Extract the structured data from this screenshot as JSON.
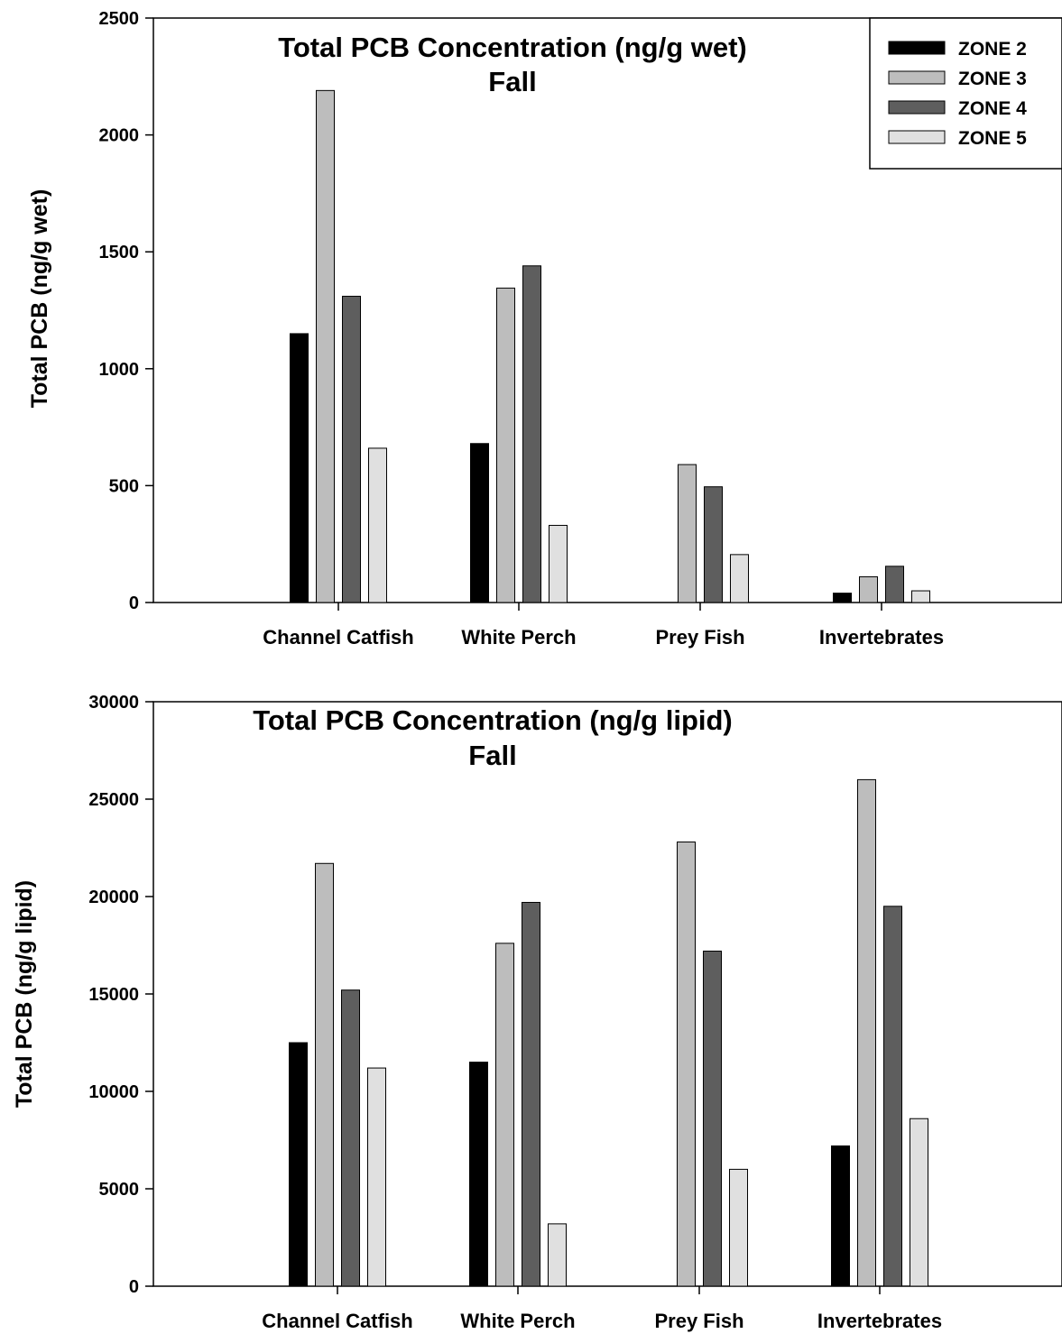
{
  "chart_data": [
    {
      "type": "bar",
      "title": "Total PCB Concentration (ng/g wet)",
      "subtitle": "Fall",
      "xlabel": "",
      "ylabel": "Total PCB (ng/g wet)",
      "ylim": [
        0,
        2500
      ],
      "yticks": [
        0,
        500,
        1000,
        1500,
        2000,
        2500
      ],
      "categories": [
        "Channel Catfish",
        "White Perch",
        "Prey Fish",
        "Invertebrates"
      ],
      "legend_position": "top-right",
      "grid": false,
      "series": [
        {
          "name": "ZONE 2",
          "color": "#000000",
          "values": [
            1150,
            680,
            null,
            40
          ]
        },
        {
          "name": "ZONE 3",
          "color": "#bdbdbd",
          "values": [
            2190,
            1345,
            590,
            110
          ]
        },
        {
          "name": "ZONE 4",
          "color": "#5e5e5e",
          "values": [
            1310,
            1440,
            495,
            155
          ]
        },
        {
          "name": "ZONE 5",
          "color": "#e0e0e0",
          "values": [
            660,
            330,
            205,
            50
          ]
        }
      ]
    },
    {
      "type": "bar",
      "title": "Total PCB Concentration (ng/g lipid)",
      "subtitle": "Fall",
      "xlabel": "",
      "ylabel": "Total PCB (ng/g lipid)",
      "ylim": [
        0,
        30000
      ],
      "yticks": [
        0,
        5000,
        10000,
        15000,
        20000,
        25000,
        30000
      ],
      "categories": [
        "Channel Catfish",
        "White Perch",
        "Prey Fish",
        "Invertebrates"
      ],
      "legend_position": "none",
      "grid": false,
      "series": [
        {
          "name": "ZONE 2",
          "color": "#000000",
          "values": [
            12500,
            11500,
            null,
            7200
          ]
        },
        {
          "name": "ZONE 3",
          "color": "#bdbdbd",
          "values": [
            21700,
            17600,
            22800,
            26000
          ]
        },
        {
          "name": "ZONE 4",
          "color": "#5e5e5e",
          "values": [
            15200,
            19700,
            17200,
            19500
          ]
        },
        {
          "name": "ZONE 5",
          "color": "#e0e0e0",
          "values": [
            11200,
            3200,
            6000,
            8600
          ]
        }
      ]
    }
  ]
}
